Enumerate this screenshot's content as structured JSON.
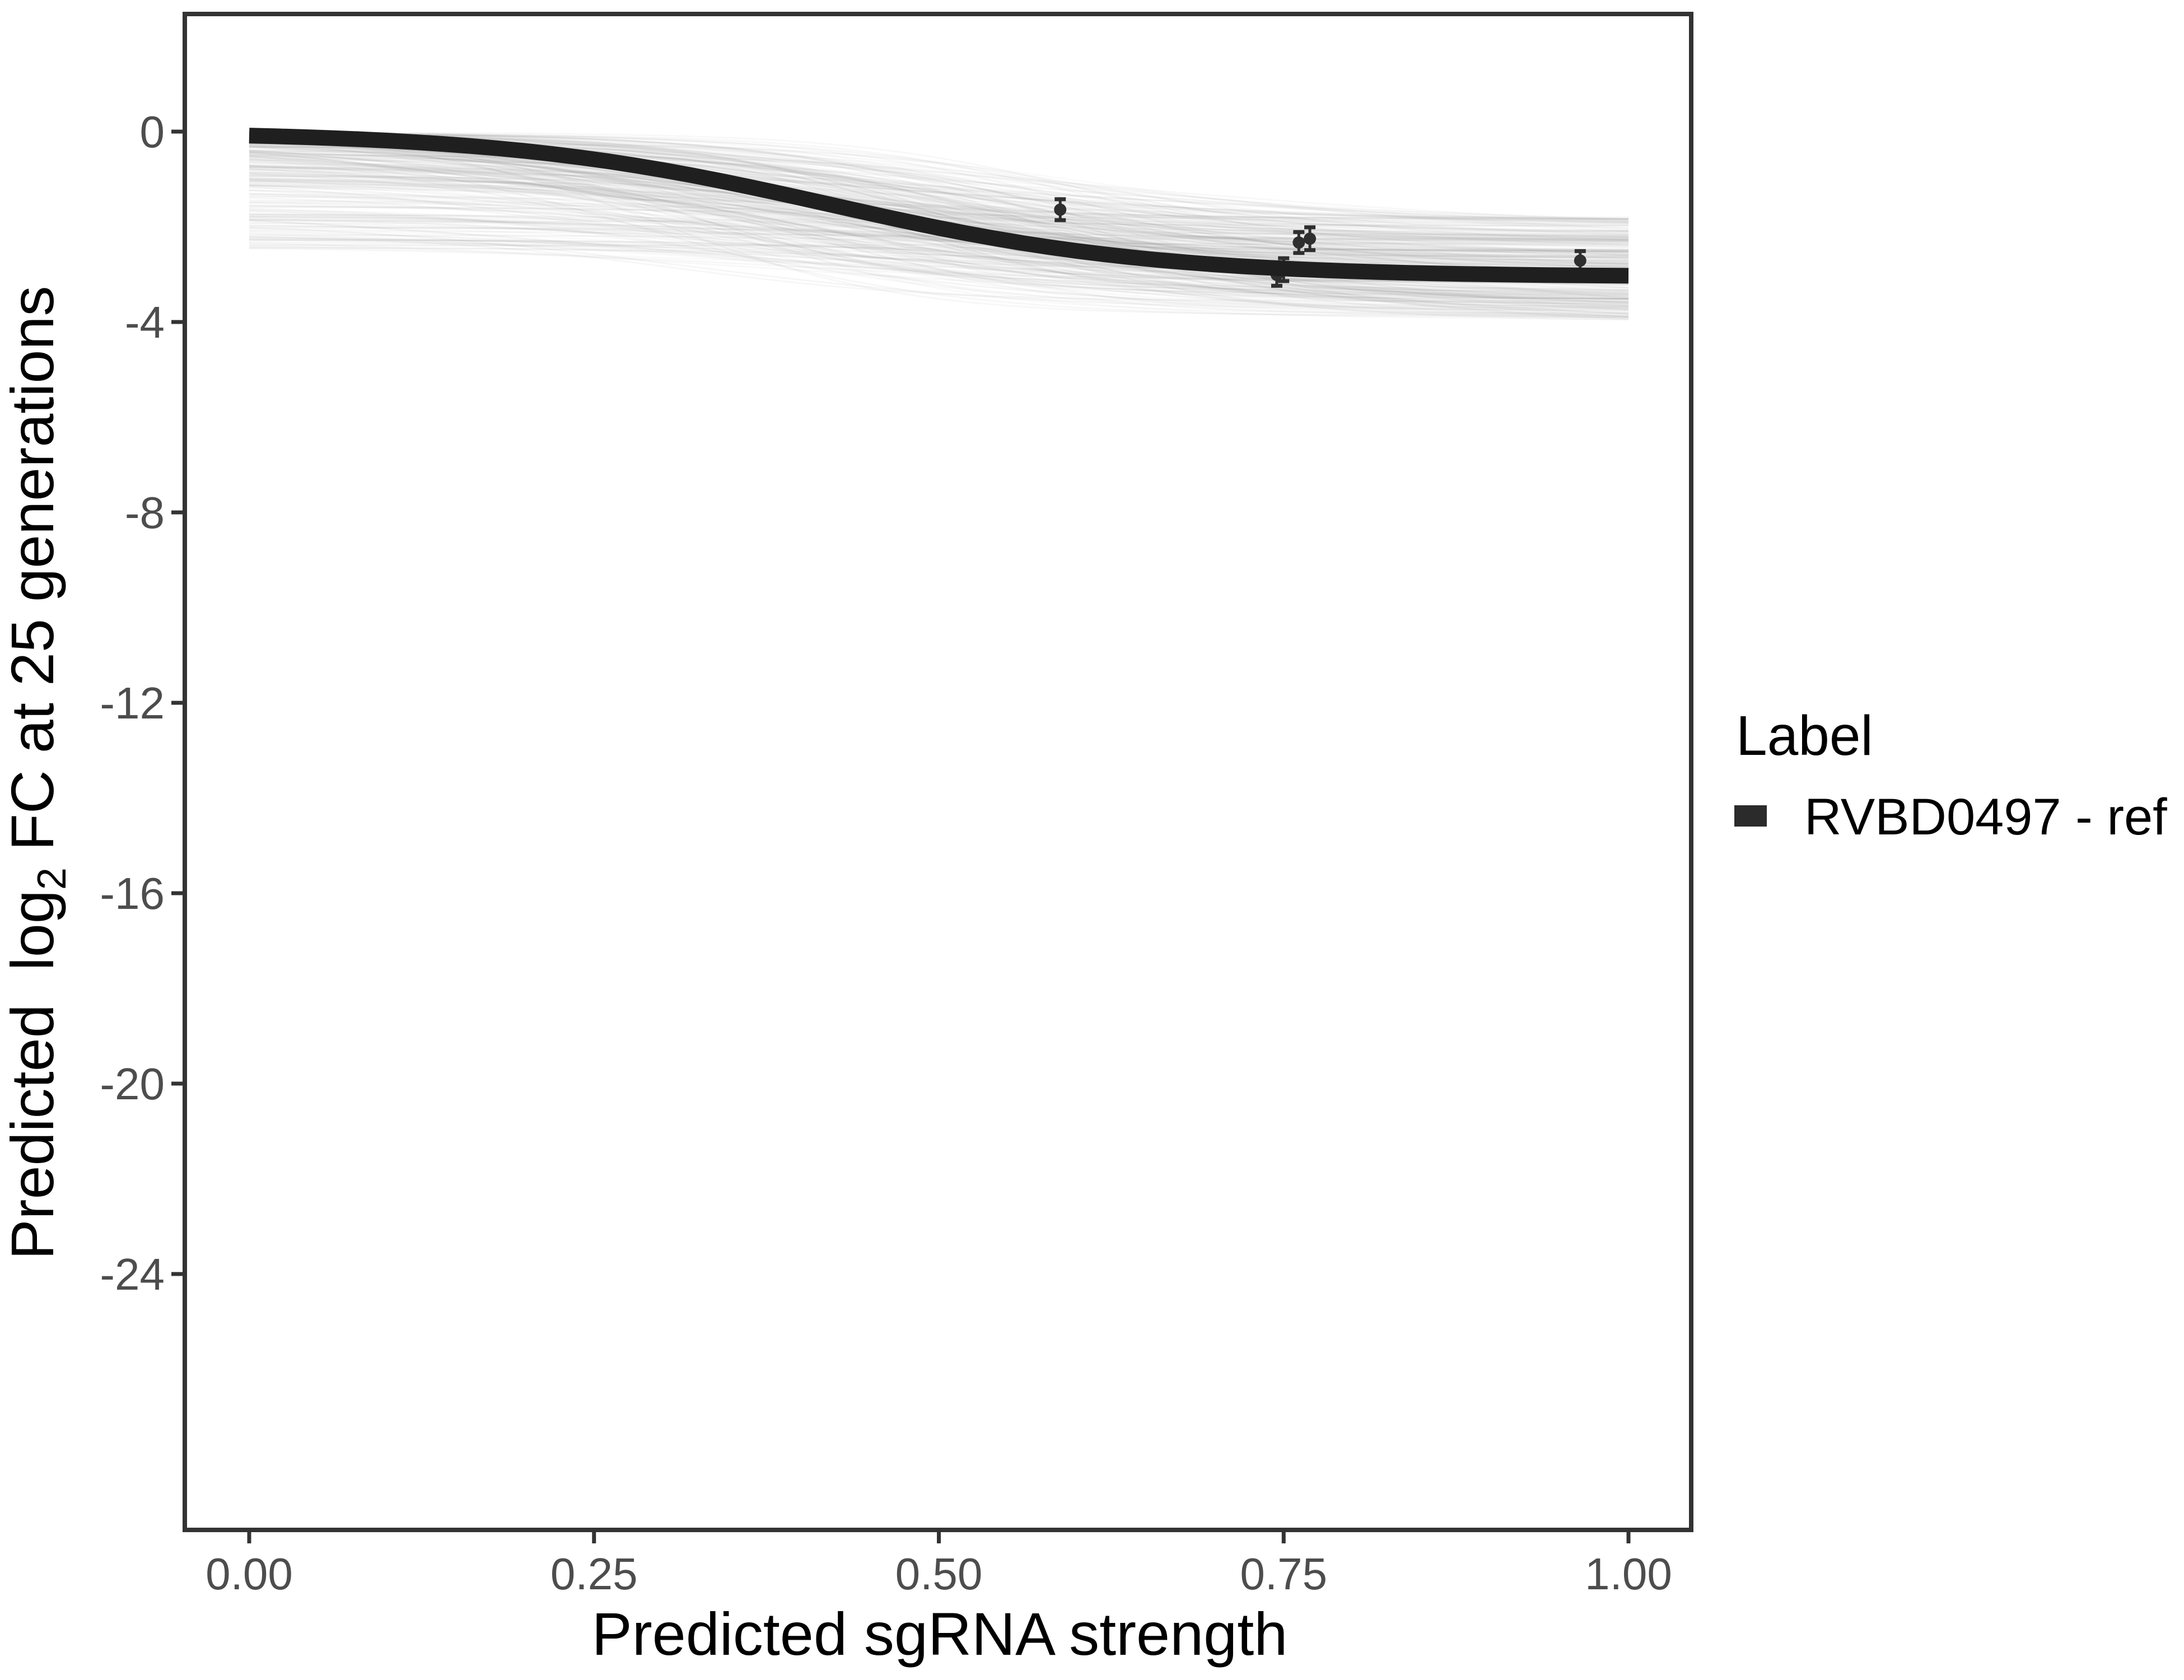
{
  "chart_data": {
    "type": "line",
    "title": "",
    "xlabel": "Predicted sgRNA strength",
    "ylabel": "Predicted log2 FC at 25 generations",
    "ylabel_parts": {
      "pre": "Predicted  log",
      "sub": "2",
      "post": " FC at 25 generations"
    },
    "x_axis": {
      "tick_labels": [
        "0.00",
        "0.25",
        "0.50",
        "0.75",
        "1.00"
      ],
      "tick_values": [
        0,
        0.25,
        0.5,
        0.75,
        1.0
      ],
      "range_shown": [
        -0.047,
        1.046
      ]
    },
    "y_axis": {
      "tick_labels": [
        "0",
        "-4",
        "-8",
        "-12",
        "-16",
        "-20",
        "-24"
      ],
      "tick_values": [
        0,
        -4,
        -8,
        -12,
        -16,
        -20,
        -24
      ],
      "range_shown": [
        -29.4,
        2.5
      ]
    },
    "grid": false,
    "legend": {
      "title": "Label",
      "position": "right",
      "items": [
        {
          "label": "RVBD0497 - ref",
          "marker_color": "#2b2b2b"
        }
      ]
    },
    "fit_curve": {
      "series": "RVBD0497 - ref",
      "model": "logistic",
      "amplitude": -3.05,
      "midpoint": 0.42,
      "steepness": 8.5,
      "x_domain": [
        0,
        1
      ],
      "color": "#1f1f1f",
      "stroke_width_px": 28
    },
    "points": [
      {
        "x": 0.588,
        "y": -1.64,
        "err": 0.22
      },
      {
        "x": 0.745,
        "y": -3.01,
        "err": 0.23
      },
      {
        "x": 0.75,
        "y": -2.9,
        "err": 0.24
      },
      {
        "x": 0.761,
        "y": -2.33,
        "err": 0.22
      },
      {
        "x": 0.769,
        "y": -2.25,
        "err": 0.24
      },
      {
        "x": 0.965,
        "y": -2.71,
        "err": 0.2
      }
    ],
    "posterior_band": {
      "n_lines": 300,
      "color": "#8c8c8c",
      "opacity": 0.06,
      "stroke_width_px": 3,
      "start_value_range": [
        -0.02,
        -2.47
      ],
      "end_value_range": [
        -1.8,
        -3.95
      ],
      "midpoint_range": [
        0.28,
        0.62
      ],
      "steepness_range": [
        3.5,
        12
      ],
      "seed": 42
    },
    "colors": {
      "axis_text": "#4d4d4d",
      "axis_line": "#333333",
      "curve": "#1f1f1f",
      "point": "#2e2e2e",
      "background": "#ffffff"
    }
  }
}
